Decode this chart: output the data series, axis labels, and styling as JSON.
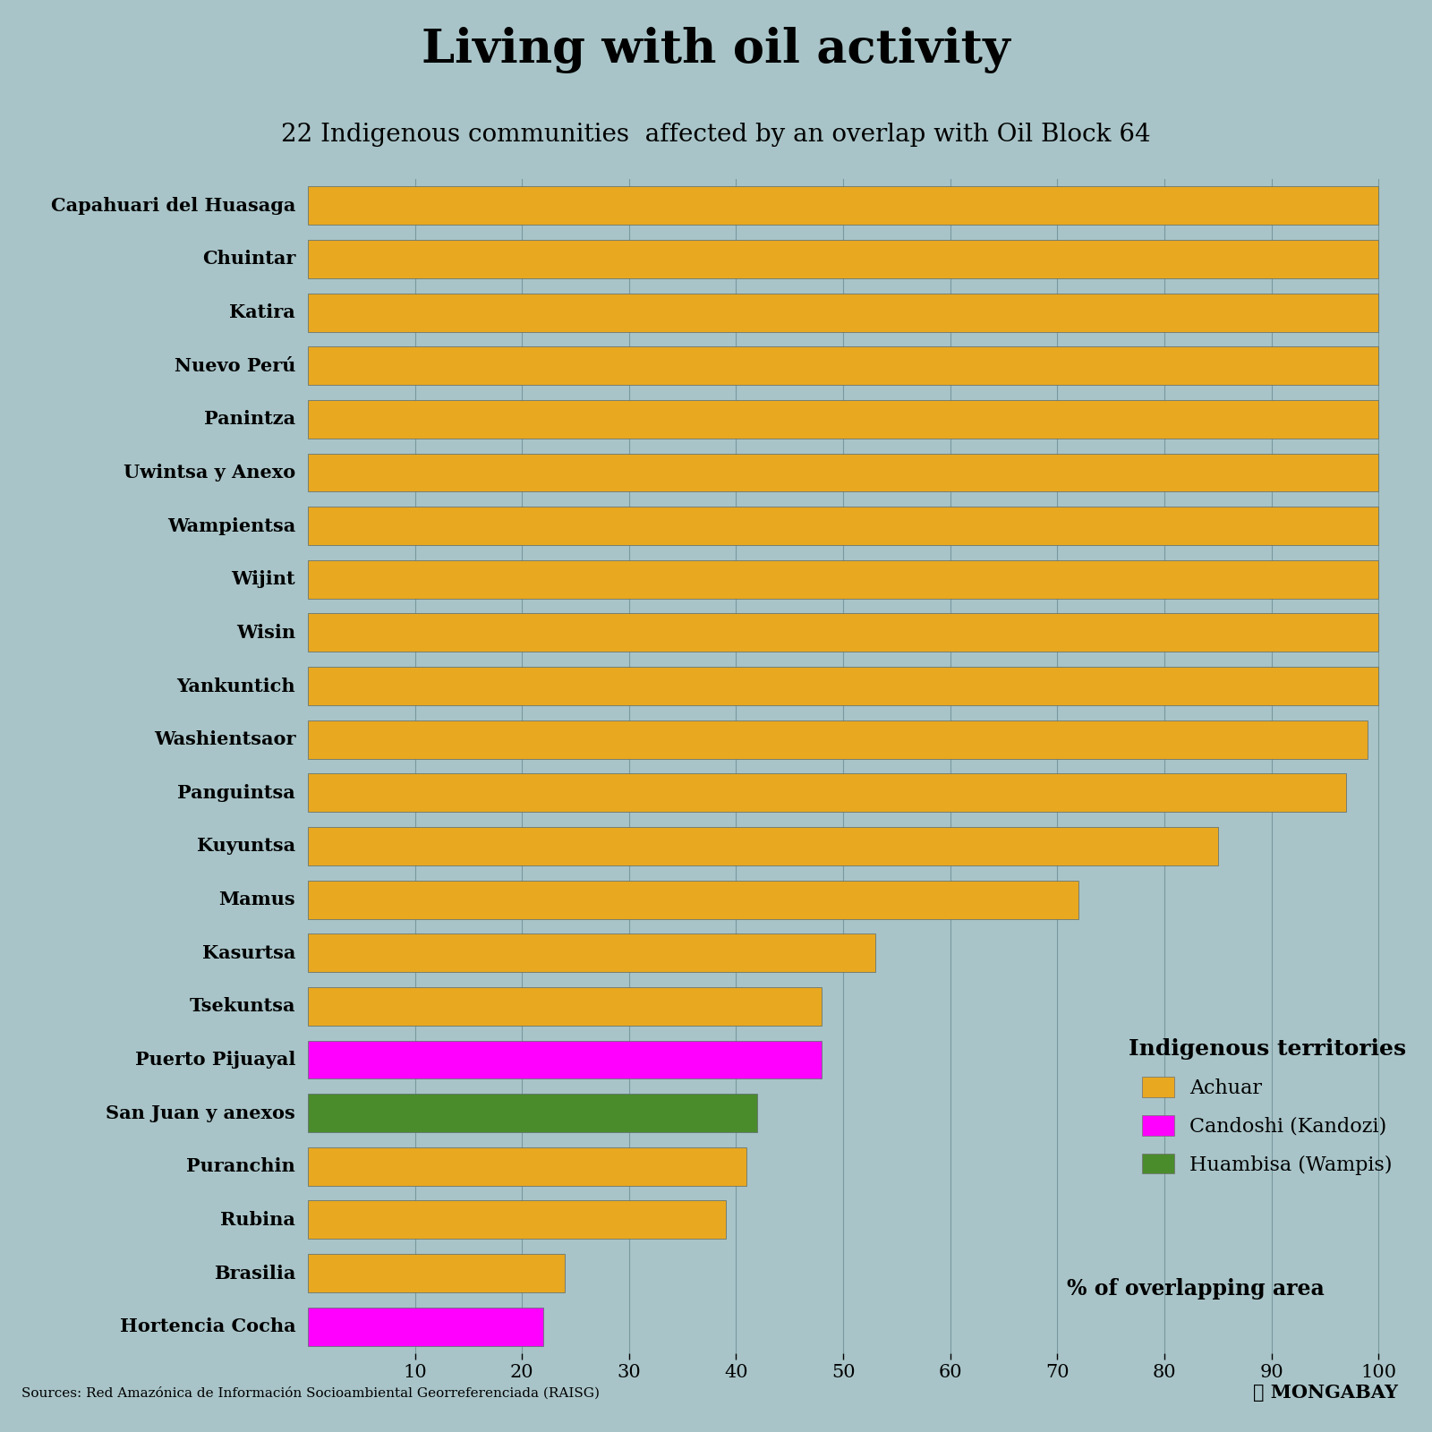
{
  "title": "Living with oil activity",
  "subtitle": "22 Indigenous communities  affected by an overlap with Oil Block 64",
  "source": "Sources: Red Amazónica de Información Socioambiental Georreferenciada (RAISG)",
  "categories": [
    "Capahuari del Huasaga",
    "Chuintar",
    "Katira",
    "Nuevo Perú",
    "Panintza",
    "Uwintsa y Anexo",
    "Wampientsa",
    "Wijint",
    "Wisin",
    "Yankuntich",
    "Washientsaor",
    "Panguintsa",
    "Kuyuntsa",
    "Mamus",
    "Kasurtsa",
    "Tsekuntsa",
    "Puerto Pijuayal",
    "San Juan y anexos",
    "Puranchin",
    "Rubina",
    "Brasilia",
    "Hortencia Cocha"
  ],
  "values": [
    100,
    100,
    100,
    100,
    100,
    100,
    100,
    100,
    100,
    100,
    99,
    97,
    85,
    72,
    53,
    48,
    48,
    42,
    41,
    39,
    24,
    22
  ],
  "colors": [
    "#E8A820",
    "#E8A820",
    "#E8A820",
    "#E8A820",
    "#E8A820",
    "#E8A820",
    "#E8A820",
    "#E8A820",
    "#E8A820",
    "#E8A820",
    "#E8A820",
    "#E8A820",
    "#E8A820",
    "#E8A820",
    "#E8A820",
    "#E8A820",
    "#FF00FF",
    "#4A8B2C",
    "#E8A820",
    "#E8A820",
    "#E8A820",
    "#FF00FF"
  ],
  "legend_labels": [
    "Achuar",
    "Candoshi (Kandozi)",
    "Huambisa (Wampis)"
  ],
  "legend_colors": [
    "#E8A820",
    "#FF00FF",
    "#4A8B2C"
  ],
  "left_bg": "#6B9E9E",
  "chart_bg": "#A8C4C8",
  "title_bg": "#FFFFFF",
  "bottom_bg": "#FFFFFF",
  "xlim_max": 105,
  "xticks": [
    10,
    20,
    30,
    40,
    50,
    60,
    70,
    80,
    90,
    100
  ],
  "title_fontsize": 38,
  "subtitle_fontsize": 20,
  "label_fontsize": 15,
  "tick_fontsize": 15,
  "legend_title_fontsize": 18,
  "legend_fontsize": 16,
  "pct_label_fontsize": 17
}
